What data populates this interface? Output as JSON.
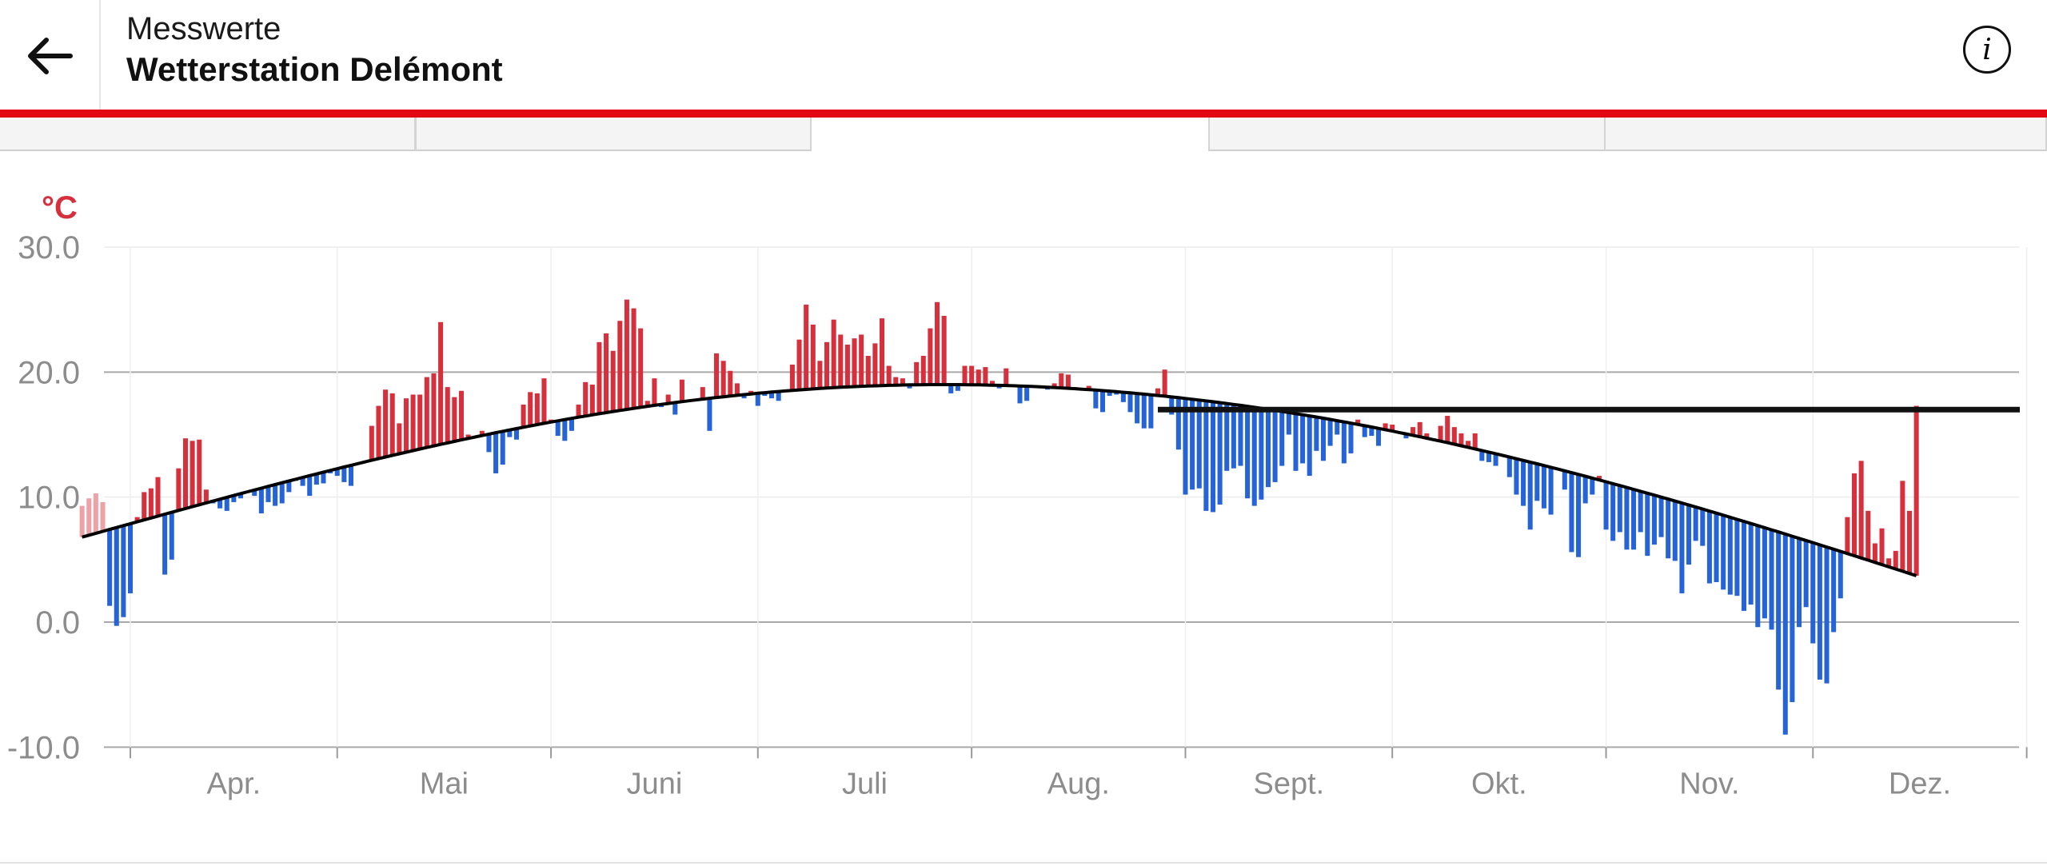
{
  "header": {
    "subtitle": "Messwerte",
    "title": "Wetterstation Delémont",
    "back_icon": "arrow-left-icon",
    "info_icon": "info-circle-icon",
    "info_glyph": "i"
  },
  "colors": {
    "accent": "#e30613",
    "above_avg": "#d6303c",
    "below_avg": "#2563d6",
    "norm_line": "#000000",
    "unit_label": "#d6303c"
  },
  "tabs": [
    {
      "active": false
    },
    {
      "active": false
    },
    {
      "active": true
    },
    {
      "active": false
    },
    {
      "active": false
    }
  ],
  "chart_data": {
    "type": "bar",
    "unit": "°C",
    "ylim": [
      -10,
      30
    ],
    "yticks": [
      "30.0",
      "20.0",
      "10.0",
      "0.0",
      "-10.0"
    ],
    "ytick_values": [
      30,
      20,
      10,
      0,
      -10
    ],
    "grid": true,
    "months": [
      "Apr.",
      "Mai",
      "Juni",
      "Juli",
      "Aug.",
      "Sept.",
      "Okt.",
      "Nov.",
      "Dez."
    ],
    "start_date": "2019-03-25",
    "end_date": "2019-12-31",
    "norm_start": 6.8,
    "norm_amplitude": 12.2,
    "norm_peak_date": "2019-07-28",
    "reference_level": 17.0,
    "reference_from": "2019-08-28",
    "values": [
      9.3,
      9.9,
      10.3,
      9.6,
      1.3,
      -0.3,
      0.4,
      2.3,
      8.4,
      10.4,
      10.7,
      11.6,
      3.8,
      5.0,
      12.3,
      14.7,
      14.5,
      14.6,
      10.6,
      9.5,
      9.1,
      8.9,
      9.6,
      9.9,
      10.5,
      10.1,
      8.7,
      9.6,
      9.3,
      9.5,
      10.4,
      11.3,
      10.9,
      10.1,
      11.0,
      11.1,
      11.9,
      11.7,
      11.2,
      10.9,
      12.7,
      12.9,
      15.7,
      17.3,
      18.6,
      18.3,
      15.9,
      17.9,
      18.2,
      18.2,
      19.6,
      19.9,
      24.0,
      18.8,
      18.0,
      18.5,
      15.0,
      14.9,
      15.3,
      13.6,
      11.9,
      12.6,
      14.8,
      14.6,
      17.4,
      18.4,
      18.3,
      19.5,
      16.2,
      14.9,
      14.5,
      15.3,
      17.4,
      19.2,
      19.0,
      22.4,
      23.1,
      21.7,
      24.1,
      25.8,
      25.1,
      23.5,
      17.7,
      19.5,
      17.2,
      18.2,
      16.6,
      19.4,
      17.7,
      17.7,
      18.8,
      15.3,
      21.5,
      20.9,
      20.1,
      19.1,
      17.9,
      18.5,
      17.3,
      18.1,
      17.9,
      17.7,
      18.6,
      20.6,
      22.6,
      25.4,
      23.8,
      20.9,
      22.4,
      24.2,
      23.0,
      22.2,
      22.7,
      23.0,
      21.3,
      22.3,
      24.3,
      20.5,
      19.6,
      19.5,
      18.7,
      20.8,
      21.3,
      23.5,
      25.6,
      24.5,
      18.3,
      18.5,
      20.5,
      20.5,
      20.2,
      20.4,
      19.3,
      18.7,
      20.3,
      18.9,
      17.5,
      17.7,
      18.9,
      18.7,
      18.6,
      19.1,
      19.9,
      19.8,
      18.8,
      18.6,
      18.9,
      17.1,
      16.8,
      18.1,
      18.2,
      17.6,
      16.8,
      15.9,
      15.5,
      15.5,
      18.7,
      20.2,
      16.6,
      13.8,
      10.2,
      10.6,
      10.7,
      8.9,
      8.8,
      9.4,
      12.1,
      12.3,
      12.5,
      9.9,
      9.3,
      9.8,
      10.8,
      11.2,
      12.5,
      15.0,
      12.1,
      12.7,
      11.7,
      13.7,
      12.9,
      14.1,
      15.0,
      12.7,
      13.5,
      16.2,
      14.8,
      14.9,
      14.1,
      15.9,
      15.8,
      15.2,
      14.7,
      15.6,
      16.0,
      15.1,
      14.7,
      15.7,
      16.5,
      15.6,
      15.1,
      14.5,
      15.1,
      12.9,
      12.8,
      12.5,
      13.4,
      11.6,
      10.2,
      9.3,
      7.4,
      9.7,
      9.1,
      8.6,
      12.2,
      10.6,
      5.6,
      5.2,
      9.5,
      10.2,
      11.7,
      7.4,
      6.5,
      7.2,
      5.8,
      5.8,
      7.2,
      5.3,
      6.2,
      6.8,
      5.1,
      4.9,
      2.3,
      4.6,
      6.5,
      6.1,
      3.1,
      3.2,
      2.6,
      2.2,
      2.1,
      0.9,
      1.4,
      -0.4,
      0.3,
      -0.6,
      -5.4,
      -9.0,
      -6.4,
      -0.4,
      1.2,
      -1.7,
      -4.6,
      -4.9,
      -0.8,
      1.9,
      8.4,
      11.9,
      12.9,
      8.9,
      6.3,
      7.5,
      5.1,
      5.7,
      11.3,
      8.9,
      17.3
    ]
  }
}
